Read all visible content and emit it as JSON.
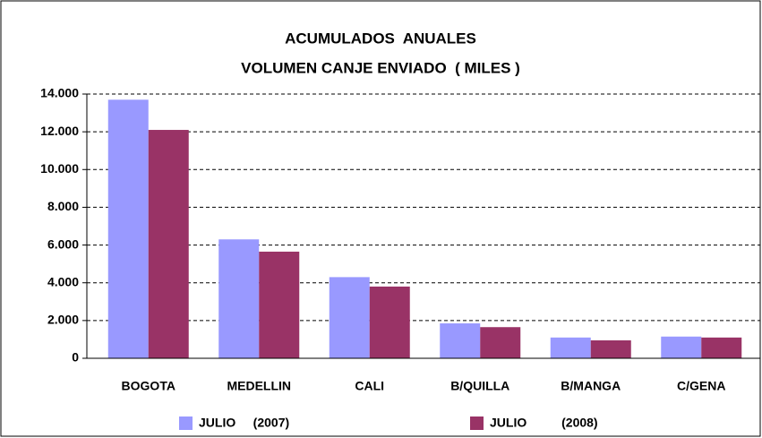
{
  "chart_data": {
    "type": "bar",
    "title": "ACUMULADOS  ANUALES",
    "subtitle": "VOLUMEN CANJE ENVIADO  ( MILES )",
    "categories": [
      "BOGOTA",
      "MEDELLIN",
      "CALI",
      "B/QUILLA",
      "B/MANGA",
      "C/GENA"
    ],
    "series": [
      {
        "name": "JULIO     (2007)",
        "color": "#9999ff",
        "values": [
          13700,
          6300,
          4300,
          1850,
          1100,
          1150
        ]
      },
      {
        "name": "JULIO          (2008)",
        "color": "#993366",
        "values": [
          12100,
          5650,
          3800,
          1650,
          950,
          1100
        ]
      }
    ],
    "ylim": [
      0,
      14000
    ],
    "yticks": [
      0,
      {
        "value": 2000,
        "label": "2.000"
      },
      {
        "value": 4000,
        "label": "4.000"
      },
      {
        "value": 6000,
        "label": "6.000"
      },
      {
        "value": 8000,
        "label": "8.000"
      },
      {
        "value": 10000,
        "label": "10.000"
      },
      {
        "value": 12000,
        "label": "12.000"
      },
      {
        "value": 14000,
        "label": "14.000"
      }
    ],
    "grid": true
  }
}
